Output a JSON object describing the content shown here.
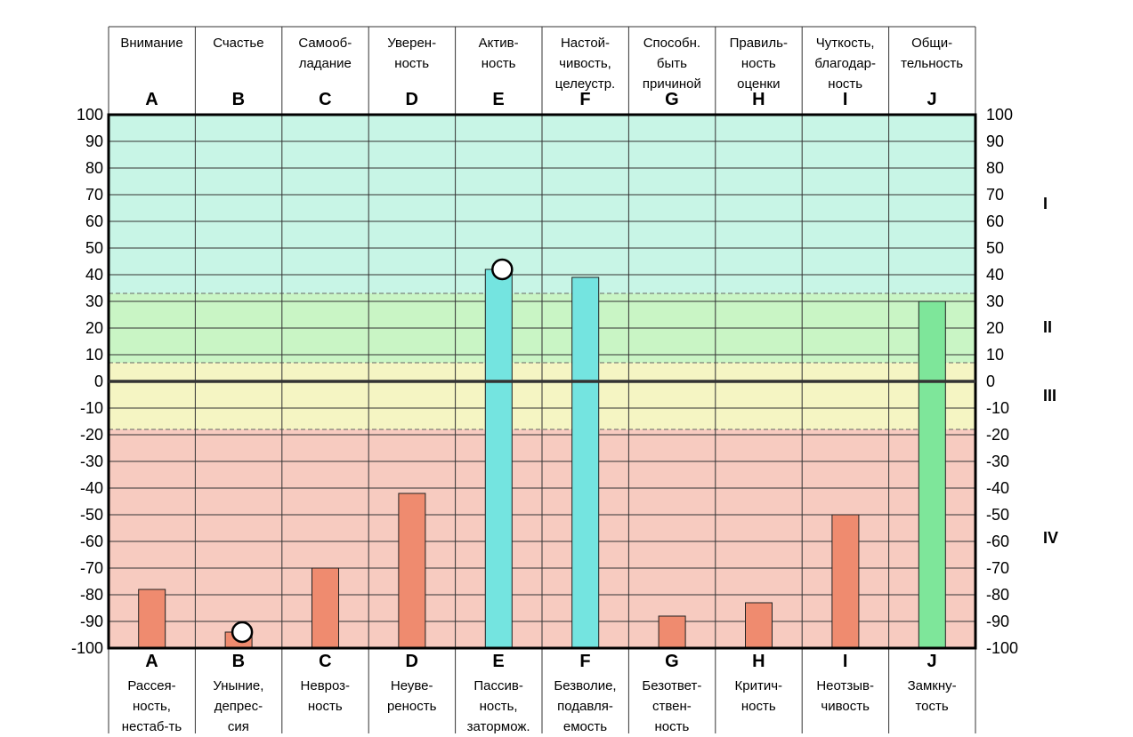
{
  "colors": {
    "zone_I": "#c8f5e6",
    "zone_II": "#c9f5c5",
    "zone_III": "#f5f5c3",
    "zone_IV": "#f7cbc0",
    "bar_low": "#ef8b6f",
    "bar_E_F": "#74e4e0",
    "bar_J": "#7ee69a"
  },
  "chart_data": {
    "type": "bar",
    "categories": [
      "A",
      "B",
      "C",
      "D",
      "E",
      "F",
      "G",
      "H",
      "I",
      "J"
    ],
    "top_labels": [
      "Внимание",
      "Счастье",
      "Самооб-\nладание",
      "Уверен-\nность",
      "Актив-\nность",
      "Настой-\nчивость,\nцелеустр.",
      "Способн.\nбыть\nпричиной",
      "Правиль-\nность\nоценки",
      "Чуткость,\nблагодар-\nность",
      "Общи-\nтельность"
    ],
    "bottom_labels": [
      "Рассея-\nность,\nнестаб-ть",
      "Уныние,\nдепрес-\nсия",
      "Невроз-\nность",
      "Неуве-\nреность",
      "Пассив-\nность,\nзатормож.",
      "Безволие,\nподавля-\nемость",
      "Безответ-\nствен-\nность",
      "Критич-\nность",
      "Неотзыв-\nчивость",
      "Замкну-\nтость"
    ],
    "values": [
      -78,
      -94,
      -70,
      -42,
      42,
      39,
      -88,
      -83,
      -50,
      30
    ],
    "markers": [
      {
        "category": "B",
        "value": -94
      },
      {
        "category": "E",
        "value": 42
      }
    ],
    "ylim": [
      -100,
      100
    ],
    "ticks": [
      "100",
      "90",
      "80",
      "70",
      "60",
      "50",
      "40",
      "30",
      "20",
      "10",
      "0",
      "-10",
      "-20",
      "-30",
      "-40",
      "-50",
      "-60",
      "-70",
      "-80",
      "-90",
      "-100"
    ],
    "zones": [
      {
        "label": "I",
        "from": 33,
        "to": 100
      },
      {
        "label": "II",
        "from": 7,
        "to": 33
      },
      {
        "label": "III",
        "from": -18,
        "to": 7
      },
      {
        "label": "IV",
        "from": -100,
        "to": -18
      }
    ],
    "grid": true
  }
}
